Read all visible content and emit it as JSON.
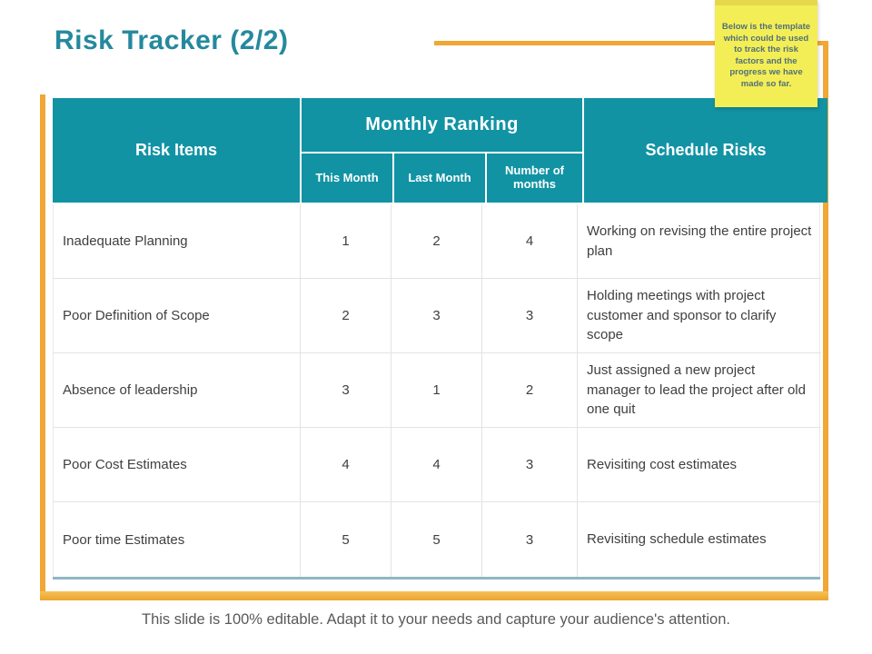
{
  "slide": {
    "title": "Risk Tracker (2/2)",
    "footer": "This slide is 100% editable. Adapt it to your needs and capture your audience's attention.",
    "sticky_note": "Below is the template which could be used to track the risk factors and the progress we have made so far."
  },
  "table": {
    "headers": {
      "risk_items": "Risk Items",
      "monthly_ranking": "Monthly Ranking",
      "this_month": "This Month",
      "last_month": "Last Month",
      "number_of_months": "Number of months",
      "schedule_risks": "Schedule Risks"
    },
    "rows": [
      {
        "risk_item": "Inadequate Planning",
        "this_month": "1",
        "last_month": "2",
        "number_of_months": "4",
        "schedule_risk": "Working on revising the entire project plan"
      },
      {
        "risk_item": "Poor Definition of Scope",
        "this_month": "2",
        "last_month": "3",
        "number_of_months": "3",
        "schedule_risk": "Holding meetings with project customer and sponsor to clarify scope"
      },
      {
        "risk_item": "Absence of leadership",
        "this_month": "3",
        "last_month": "1",
        "number_of_months": "2",
        "schedule_risk": "Just assigned a new project manager to lead the project after old one quit"
      },
      {
        "risk_item": "Poor Cost Estimates",
        "this_month": "4",
        "last_month": "4",
        "number_of_months": "3",
        "schedule_risk": "Revisiting cost estimates"
      },
      {
        "risk_item": "Poor time Estimates",
        "this_month": "5",
        "last_month": "5",
        "number_of_months": "3",
        "schedule_risk": "Revisiting schedule estimates"
      }
    ]
  },
  "colors": {
    "header_teal": "#1193a4",
    "title_teal": "#25899d",
    "accent_orange": "#f0a735",
    "note_yellow": "#f3ee55",
    "table_bottom_line": "#8fb7c3",
    "body_text": "#3f3f3f",
    "footer_text": "#595959"
  }
}
